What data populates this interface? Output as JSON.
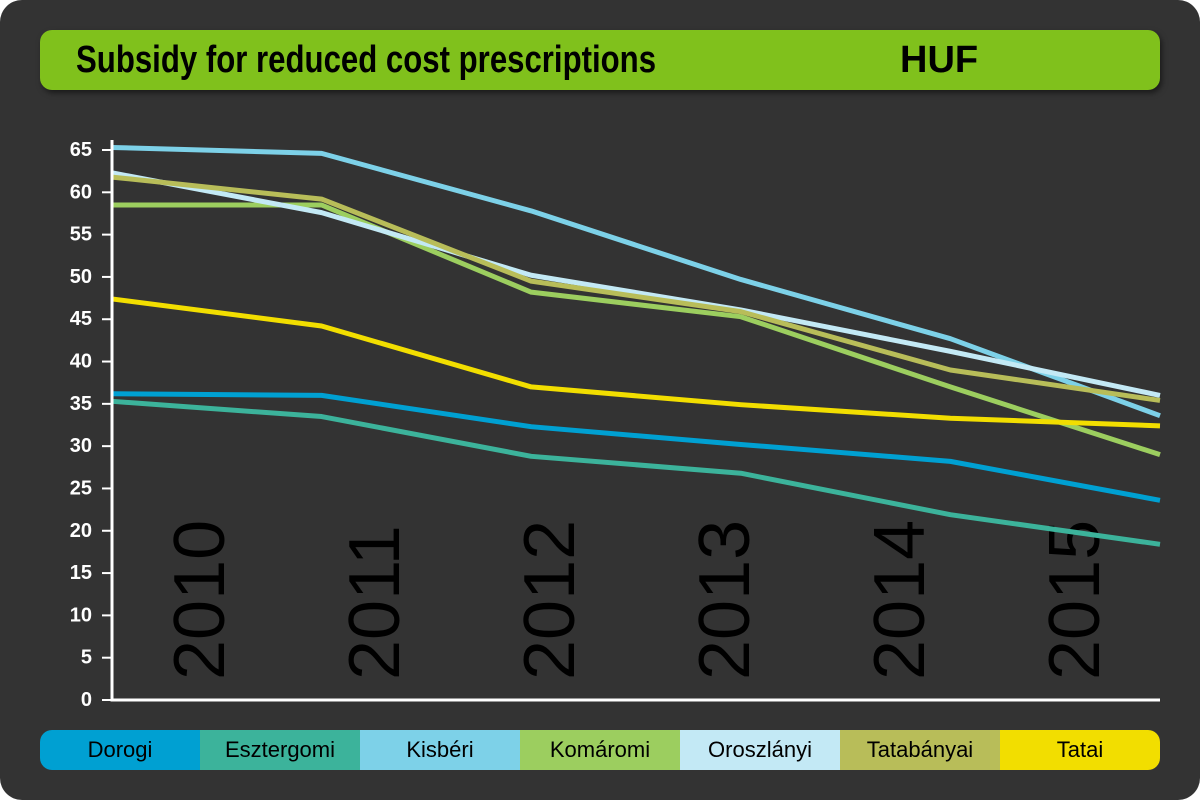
{
  "header": {
    "title": "Subsidy for reduced cost prescriptions",
    "unit": "HUF"
  },
  "chart_data": {
    "type": "line",
    "title": "Subsidy for reduced cost prescriptions",
    "unit": "HUF",
    "categories": [
      "2010",
      "2011",
      "2012",
      "2013",
      "2014",
      "2015"
    ],
    "ylim": [
      0,
      65
    ],
    "yticks": [
      "0",
      "5",
      "10",
      "15",
      "20",
      "25",
      "30",
      "35",
      "40",
      "45",
      "50",
      "55",
      "60",
      "65"
    ],
    "grid": false,
    "legend_position": "bottom",
    "series": [
      {
        "name": "Dorogi",
        "color": "#00a0d2",
        "values": [
          36.2,
          36.0,
          32.3,
          30.2,
          28.2,
          23.6
        ]
      },
      {
        "name": "Esztergomi",
        "color": "#3cb39b",
        "values": [
          35.3,
          33.5,
          28.8,
          26.8,
          21.9,
          18.4
        ]
      },
      {
        "name": "Kisbéri",
        "color": "#7dd1e8",
        "values": [
          65.3,
          64.6,
          57.8,
          49.7,
          42.7,
          33.6
        ]
      },
      {
        "name": "Komáromi",
        "color": "#9cce5f",
        "values": [
          58.5,
          58.5,
          48.2,
          45.3,
          37.0,
          29.0
        ]
      },
      {
        "name": "Oroszlányi",
        "color": "#c3e9f5",
        "values": [
          62.3,
          57.6,
          50.2,
          46.1,
          41.2,
          36.0
        ]
      },
      {
        "name": "Tatabányai",
        "color": "#b8bd59",
        "values": [
          61.8,
          59.2,
          49.5,
          45.9,
          39.0,
          35.4
        ]
      },
      {
        "name": "Tatai",
        "color": "#f2de00",
        "values": [
          47.4,
          44.2,
          37.0,
          34.9,
          33.3,
          32.4
        ]
      }
    ]
  }
}
